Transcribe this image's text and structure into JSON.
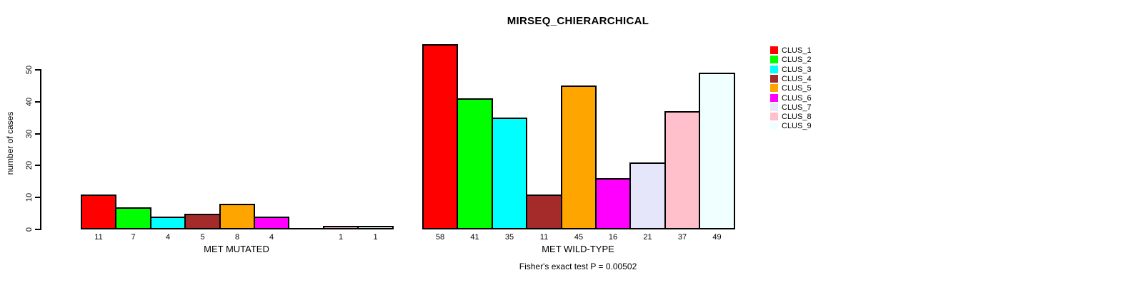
{
  "chart_data": {
    "type": "bar",
    "title": "MIRSEQ_CHIERARCHICAL",
    "ylabel": "number of cases",
    "xlabel": "",
    "footer": "Fisher's exact test P = 0.00502",
    "ylim": [
      0,
      50
    ],
    "yticks": [
      0,
      10,
      20,
      30,
      40,
      50
    ],
    "grid": false,
    "legend_position": "right",
    "bar_border_color": "#000000",
    "background_color": "#FFFFFF",
    "clusters": [
      "CLUS_1",
      "CLUS_2",
      "CLUS_3",
      "CLUS_4",
      "CLUS_5",
      "CLUS_6",
      "CLUS_7",
      "CLUS_8",
      "CLUS_9"
    ],
    "colors": [
      "#FF0000",
      "#00FF00",
      "#00FFFF",
      "#A52A2A",
      "#FFA500",
      "#FF00FF",
      "#E6E6FA",
      "#FFC0CB",
      "#F0FFFF"
    ],
    "categories": [
      "MET MUTATED",
      "MET WILD-TYPE"
    ],
    "groups": [
      {
        "label": "MET MUTATED",
        "values": [
          11,
          7,
          4,
          5,
          8,
          4,
          0,
          1,
          1
        ]
      },
      {
        "label": "MET WILD-TYPE",
        "values": [
          58,
          41,
          35,
          11,
          45,
          16,
          21,
          37,
          49
        ]
      }
    ]
  }
}
